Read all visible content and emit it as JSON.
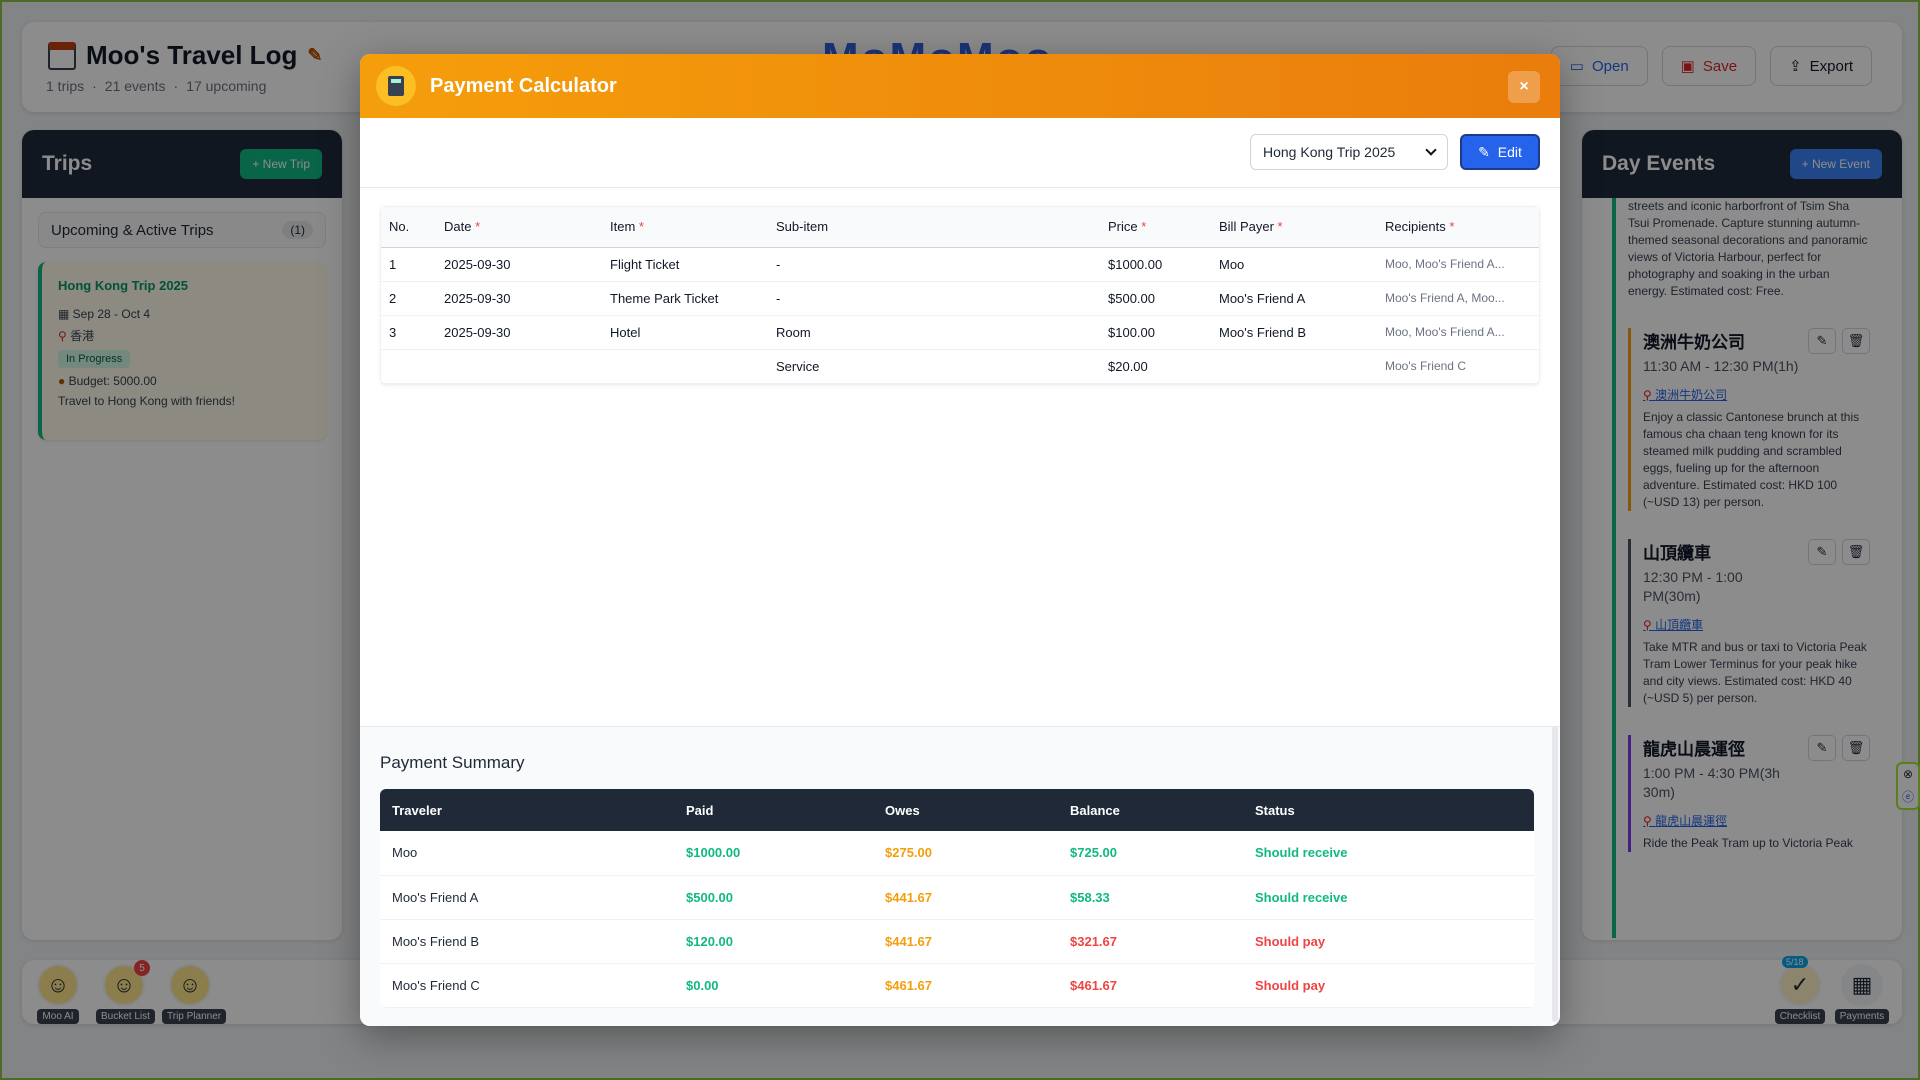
{
  "app": {
    "title": "Moo's Travel Log",
    "stats": [
      "1 trips",
      "21 events",
      "17 upcoming"
    ],
    "logo": "MoMoMoo",
    "actions": {
      "open": "Open",
      "save": "Save",
      "export": "Export"
    }
  },
  "trips_panel": {
    "title": "Trips",
    "new_button": "+ New Trip",
    "section_label": "Upcoming & Active Trips",
    "section_count": "(1)",
    "card": {
      "name": "Hong Kong Trip 2025",
      "dates": "Sep 28 - Oct 4",
      "location": "香港",
      "status": "In Progress",
      "budget": "Budget: 5000.00",
      "description": "Travel to Hong Kong with friends!"
    }
  },
  "events_panel": {
    "title": "Day Events",
    "new_button": "+ New Event",
    "top_text": "streets and iconic harborfront of Tsim Sha Tsui Promenade. Capture stunning autumn-themed seasonal decorations and panoramic views of Victoria Harbour, perfect for photography and soaking in the urban energy. Estimated cost: Free.",
    "events": [
      {
        "title": "澳洲牛奶公司",
        "time": "11:30 AM - 12:30 PM(1h)",
        "link": "澳洲牛奶公司",
        "accent": "#f59e0b",
        "desc": "Enjoy a classic Cantonese brunch at this famous cha chaan teng known for its steamed milk pudding and scrambled eggs, fueling up for the afternoon adventure. Estimated cost: HKD 100 (~USD 13) per person."
      },
      {
        "title": "山頂纜車",
        "time": "12:30 PM - 1:00 PM(30m)",
        "link": "山頂纜車",
        "accent": "#4b5563",
        "desc": "Take MTR and bus or taxi to Victoria Peak Tram Lower Terminus for your peak hike and city views. Estimated cost: HKD 40 (~USD 5) per person."
      },
      {
        "title": "龍虎山晨運徑",
        "time": "1:00 PM - 4:30 PM(3h 30m)",
        "link": "龍虎山晨運徑",
        "accent": "#7c3aed",
        "desc": "Ride the Peak Tram up to Victoria Peak"
      }
    ]
  },
  "dock": {
    "left": [
      {
        "label": "Moo AI"
      },
      {
        "label": "Bucket List",
        "badge": "5"
      },
      {
        "label": "Trip Planner"
      }
    ],
    "right": [
      {
        "label": "Checklist",
        "badge": "5/18"
      },
      {
        "label": "Payments"
      }
    ]
  },
  "modal": {
    "title": "Payment Calculator",
    "close_label": "×",
    "trip_select_value": "Hong Kong Trip 2025",
    "edit_label": "Edit",
    "items_columns": [
      {
        "label": "No.",
        "required": false
      },
      {
        "label": "Date",
        "required": true
      },
      {
        "label": "Item",
        "required": true
      },
      {
        "label": "Sub-item",
        "required": false
      },
      {
        "label": "Price",
        "required": true
      },
      {
        "label": "Bill Payer",
        "required": true
      },
      {
        "label": "Recipients",
        "required": true
      }
    ],
    "items_rows": [
      [
        "1",
        "2025-09-30",
        "Flight Ticket",
        "-",
        "$1000.00",
        "Moo",
        "Moo, Moo's Friend A..."
      ],
      [
        "2",
        "2025-09-30",
        "Theme Park Ticket",
        "-",
        "$500.00",
        "Moo's Friend A",
        "Moo's Friend A, Moo..."
      ],
      [
        "3",
        "2025-09-30",
        "Hotel",
        "Room",
        "$100.00",
        "Moo's Friend B",
        "Moo, Moo's Friend A..."
      ],
      [
        "",
        "",
        "",
        "Service",
        "$20.00",
        "",
        "Moo's Friend C"
      ]
    ],
    "summary_title": "Payment Summary",
    "summary_columns": [
      "Traveler",
      "Paid",
      "Owes",
      "Balance",
      "Status"
    ],
    "summary_rows": [
      {
        "traveler": "Moo",
        "paid": "$1000.00",
        "owes": "$275.00",
        "balance": "$725.00",
        "status": "Should receive",
        "positive": true
      },
      {
        "traveler": "Moo's Friend A",
        "paid": "$500.00",
        "owes": "$441.67",
        "balance": "$58.33",
        "status": "Should receive",
        "positive": true
      },
      {
        "traveler": "Moo's Friend B",
        "paid": "$120.00",
        "owes": "$441.67",
        "balance": "$321.67",
        "status": "Should pay",
        "positive": false
      },
      {
        "traveler": "Moo's Friend C",
        "paid": "$0.00",
        "owes": "$461.67",
        "balance": "$461.67",
        "status": "Should pay",
        "positive": false
      }
    ]
  }
}
